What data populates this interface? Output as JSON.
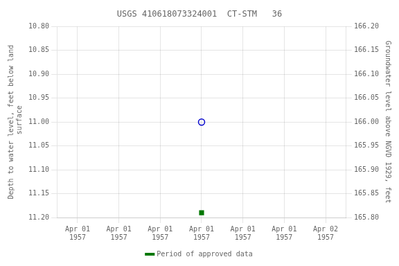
{
  "chart_data": {
    "type": "scatter",
    "title": "USGS 410618073324001  CT-STM   36",
    "y_label": "Depth to water level, feet below land\n surface",
    "y2_label": "Groundwater level above NGVD 1929, feet",
    "categories": [
      "Apr 01\n1957",
      "Apr 01\n1957",
      "Apr 01\n1957",
      "Apr 01\n1957",
      "Apr 01\n1957",
      "Apr 01\n1957",
      "Apr 02\n1957"
    ],
    "series": [
      {
        "color": "#0000cc",
        "marker": "open_circle",
        "values": [
          null,
          null,
          null,
          11.0,
          null,
          null,
          null
        ]
      },
      {
        "name": "Period of approved data",
        "color": "#007700",
        "marker": "square",
        "values": [
          null,
          null,
          null,
          11.19,
          null,
          null,
          null
        ]
      }
    ],
    "ylim": [
      11.2,
      10.8
    ],
    "yticks": [
      {
        "value": 10.8,
        "label": "10.80"
      },
      10.85,
      {
        "value": 10.9,
        "label": "10.90"
      },
      10.95,
      {
        "value": 11.0,
        "label": "11.00"
      },
      11.05,
      {
        "value": 11.1,
        "label": "11.10"
      },
      11.15,
      {
        "value": 11.2,
        "label": "11.20"
      }
    ],
    "y2lim": [
      165.8,
      166.2
    ],
    "y2ticks": [
      {
        "value": 166.2,
        "label": "166.20"
      },
      166.15,
      {
        "value": 166.1,
        "label": "166.10"
      },
      166.05,
      {
        "value": 166.0,
        "label": "166.00"
      },
      165.95,
      {
        "value": 165.9,
        "label": "165.90"
      },
      165.85,
      {
        "value": 165.8,
        "label": "165.80"
      }
    ],
    "grid": true,
    "legend": "bottom"
  }
}
